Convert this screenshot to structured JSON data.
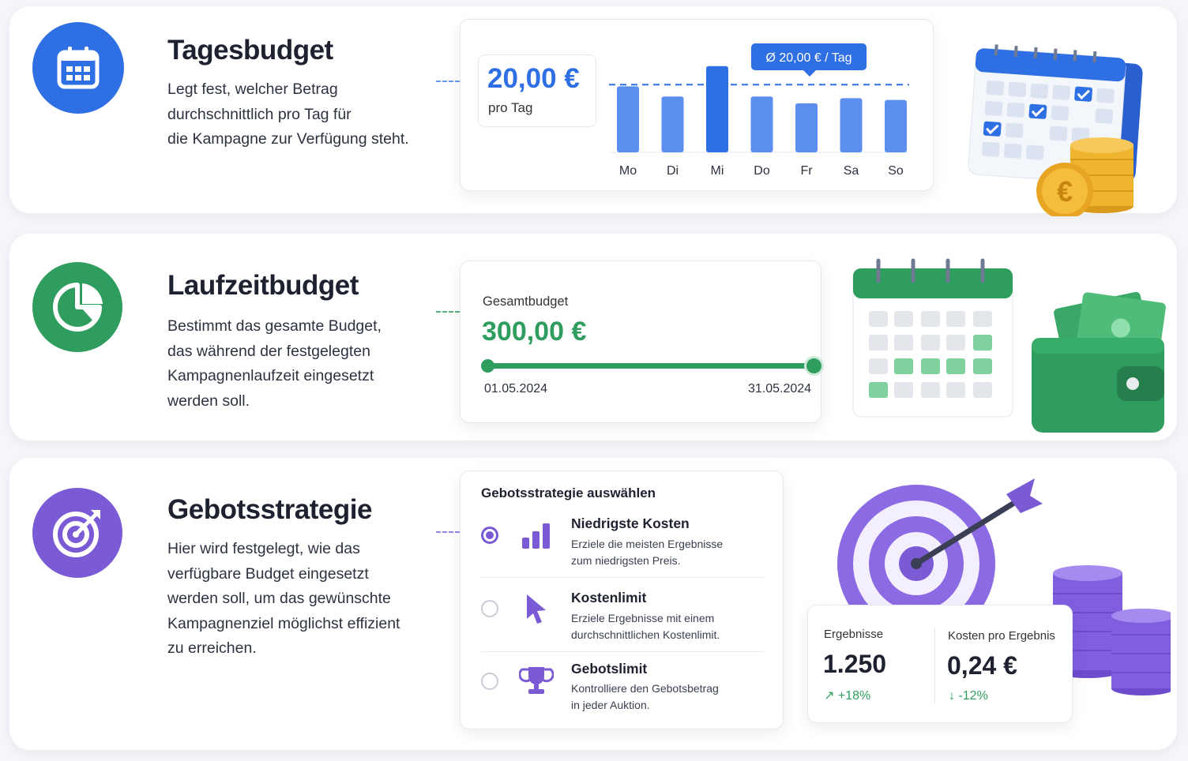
{
  "sections": {
    "daily": {
      "title": "Tagesbudget",
      "description": [
        "Legt fest, welcher Betrag",
        "durchschnittlich pro Tag für",
        "die Kampagne zur Verfügung steht."
      ],
      "amount": "20,00 €",
      "amount_unit": "pro Tag",
      "average_badge": "Ø 20,00 € / Tag",
      "accent_color": "#2f6fe4"
    },
    "lifetime": {
      "title": "Laufzeitbudget",
      "description": [
        "Bestimmt das gesamte Budget,",
        "das während der festgelegten",
        "Kampagnenlaufzeit eingesetzt",
        "werden soll."
      ],
      "total_label": "Gesamtbudget",
      "total_amount": "300,00 €",
      "start_date": "01.05.2024",
      "end_date": "31.05.2024",
      "accent_color": "#2e9d5d"
    },
    "bidding": {
      "title": "Gebotsstrategie",
      "description": [
        "Hier wird festgelegt, wie das",
        "verfügbare Budget eingesetzt",
        "werden soll, um das gewünschte",
        "Kampagnenziel möglichst effizient",
        "zu erreichen."
      ],
      "selector_title": "Gebotsstrategie auswählen",
      "options": [
        {
          "title": "Niedrigste Kosten",
          "subtitle": [
            "Erziele die meisten Ergebnisse",
            "zum niedrigsten Preis."
          ],
          "selected": true,
          "icon": "bar-chart-icon"
        },
        {
          "title": "Kostenlimit",
          "subtitle": [
            "Erziele Ergebnisse mit einem",
            "durchschnittlichen Kostenlimit."
          ],
          "selected": false,
          "icon": "cursor-icon"
        },
        {
          "title": "Gebotslimit",
          "subtitle": [
            "Kontrolliere den Gebotsbetrag",
            "in jeder Auktion."
          ],
          "selected": false,
          "icon": "trophy-icon"
        }
      ],
      "metrics": {
        "results_label": "Ergebnisse",
        "results_value": "1.250",
        "results_change": "+18%",
        "cost_label": "Kosten pro Ergebnis",
        "cost_value": "0,24 €",
        "cost_change": "-12%"
      },
      "accent_color": "#7b5ad6"
    }
  },
  "chart_data": {
    "type": "bar",
    "categories": [
      "Mo",
      "Di",
      "Mi",
      "Do",
      "Fr",
      "Sa",
      "So"
    ],
    "values": [
      19.5,
      16.5,
      25.5,
      16.5,
      14.5,
      16.0,
      15.5
    ],
    "reference_line": 20,
    "reference_label": "Ø 20,00 € / Tag",
    "ylim": [
      0,
      28
    ],
    "grid": false,
    "bar_color": "#4a82ee",
    "highlight_color": "#2f6fe4"
  }
}
